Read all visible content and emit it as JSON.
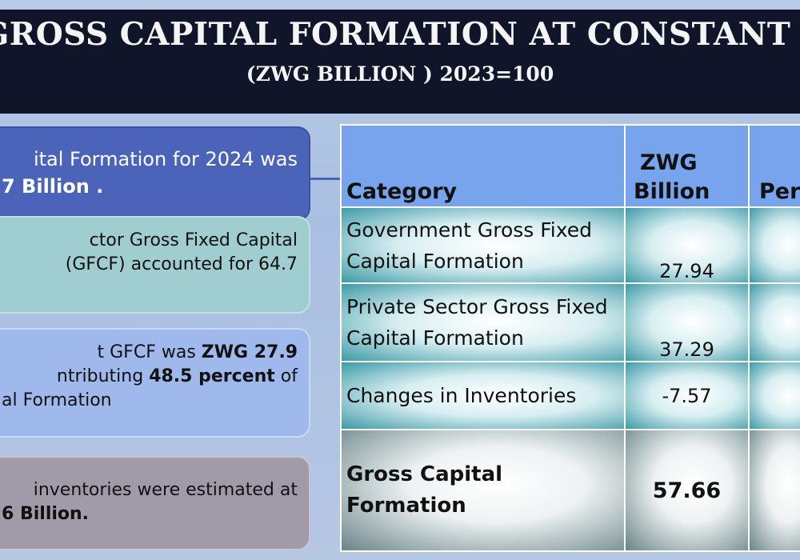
{
  "title": "GROSS CAPITAL FORMATION AT CONSTANT PRICES",
  "subtitle": "(ZWG  BILLION ) 2023=100",
  "boxes": {
    "b1": {
      "line1": "ital Formation for 2024 was",
      "line2": "7 Billion ."
    },
    "b2": {
      "line1": "ctor   Gross   Fixed   Capital",
      "line2": "(GFCF)   accounted   for   64.7"
    },
    "b3": {
      "line1a": "t  GFCF  was  ",
      "line1b": "ZWG  27.9",
      "line2a": "ntributing  ",
      "line2b": "48.5  percent",
      "line2c": "  of",
      "line3": "al Formation",
      "line3dot": "."
    },
    "b4": {
      "line1": "inventories  were  estimated  at",
      "line2": "6 Billion."
    }
  },
  "table": {
    "headers": {
      "category": "Category",
      "zwg1": "ZWG",
      "zwg2": "Billion",
      "pct": "Per"
    },
    "rows": [
      {
        "cat1": "Government Gross Fixed",
        "cat2": "Capital Formation",
        "value": "27.94"
      },
      {
        "cat1": "Private Sector Gross Fixed",
        "cat2": "Capital Formation",
        "value": "37.29"
      },
      {
        "cat1": "Changes in Inventories",
        "cat2": "",
        "value": "-7.57"
      },
      {
        "cat1": "Gross Capital",
        "cat2": "Formation",
        "value": "57.66"
      }
    ]
  },
  "colors": {
    "title_band": "#10152a",
    "box1": "#4b63b8",
    "header": "#78a4ee"
  }
}
